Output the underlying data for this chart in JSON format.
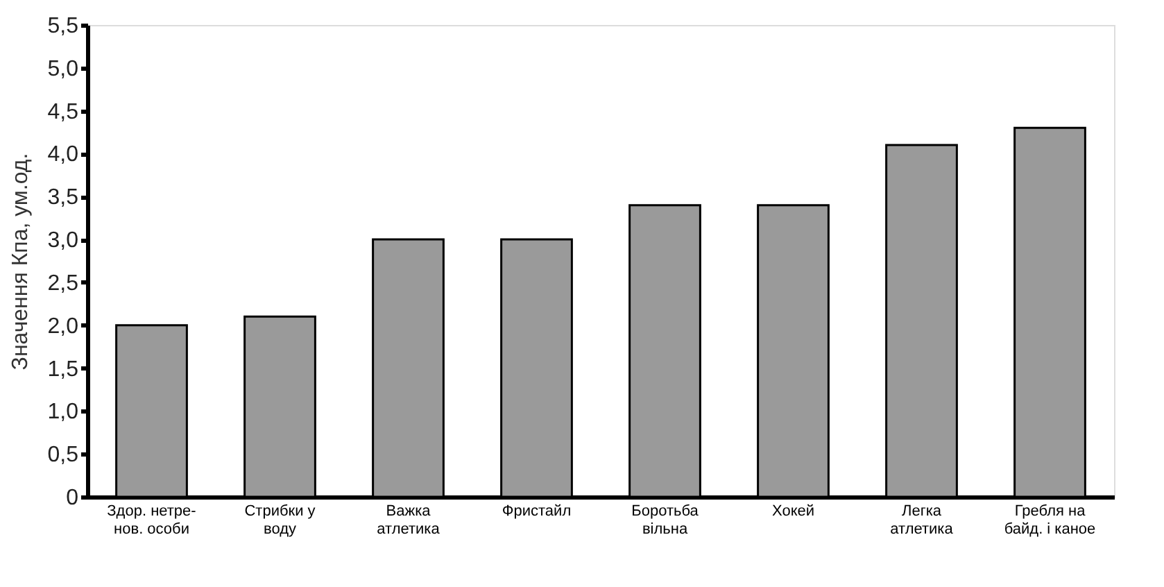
{
  "chart_data": {
    "type": "bar",
    "ylabel": "Значення Кпа, ум.од.",
    "categories": [
      "Здор. нетре-\nнов. особи",
      "Стрибки у\nводу",
      "Важка\nатлетика",
      "Фристайл",
      "Боротьба\nвільна",
      "Хокей",
      "Легка\nатлетика",
      "Гребля на\nбайд. і каное"
    ],
    "values": [
      2.0,
      2.1,
      3.0,
      3.0,
      3.4,
      3.4,
      4.1,
      4.3
    ],
    "color": "#9a9a9a",
    "ylim": [
      0,
      5.5
    ],
    "yticks": [
      0,
      {
        "value": 0.5,
        "label": "0,5"
      },
      {
        "value": 1,
        "label": "1,0"
      },
      {
        "value": 1.5,
        "label": "1,5"
      },
      {
        "value": 2,
        "label": "2,0"
      },
      {
        "value": 2.5,
        "label": "2,5"
      },
      {
        "value": 3,
        "label": "3,0"
      },
      {
        "value": 3.5,
        "label": "3,5"
      },
      {
        "value": 4,
        "label": "4,0"
      },
      {
        "value": 4.5,
        "label": "4,5"
      },
      {
        "value": 5,
        "label": "5,0"
      },
      {
        "value": 5.5,
        "label": "5,5"
      }
    ],
    "grid": false
  }
}
